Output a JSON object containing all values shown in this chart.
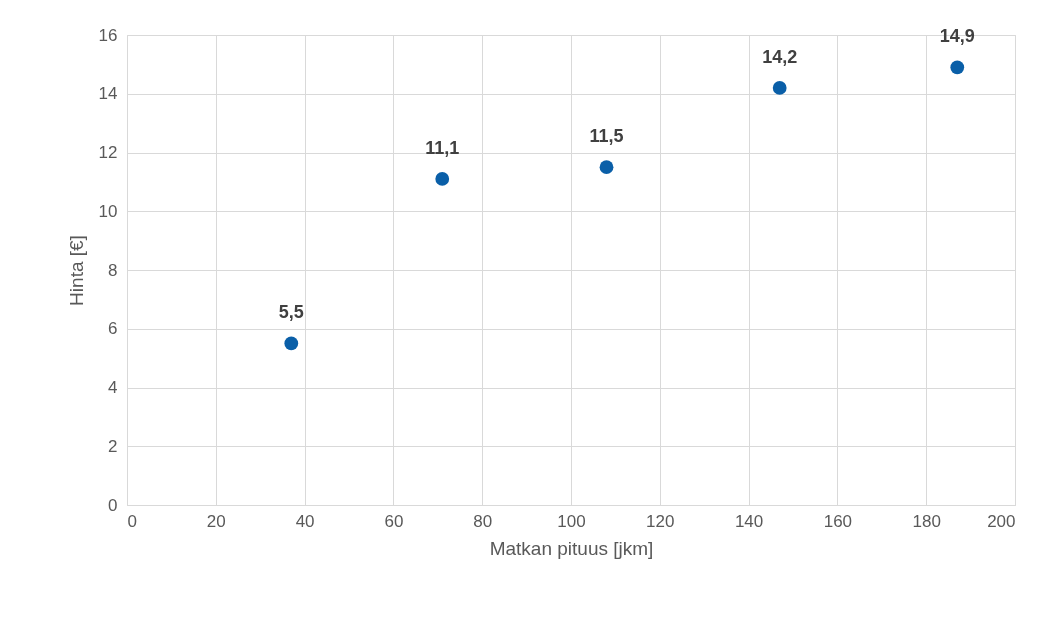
{
  "chart_data": {
    "type": "scatter",
    "xlabel": "Matkan pituus [jkm]",
    "ylabel": "Hinta [€]",
    "x": [
      37,
      71,
      108,
      147,
      187
    ],
    "series": [
      {
        "color": "#0a5fa8",
        "values": [
          5.5,
          11.1,
          11.5,
          14.2,
          14.9
        ],
        "value_labels": [
          "5,5",
          "11,1",
          "11,5",
          "14,2",
          "14,9"
        ]
      }
    ],
    "xlim": [
      0,
      200
    ],
    "xticks": [
      0,
      20,
      40,
      60,
      80,
      100,
      120,
      140,
      160,
      180,
      200
    ],
    "ylim": [
      0,
      16
    ],
    "yticks": [
      0,
      2,
      4,
      6,
      8,
      10,
      12,
      14,
      16
    ],
    "grid": true,
    "marker": "circle"
  }
}
